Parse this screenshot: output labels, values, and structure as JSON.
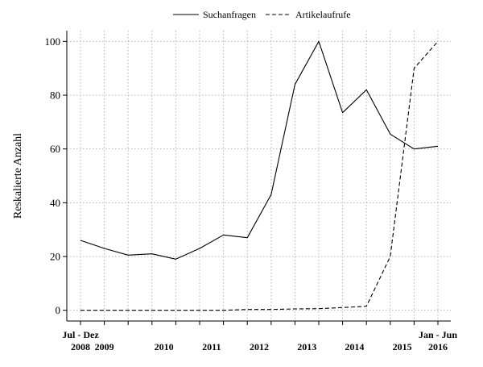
{
  "chart_data": {
    "type": "line",
    "ylabel": "Reskalierte Anzahl",
    "xlabel": "",
    "ylim": [
      -4,
      104
    ],
    "yticks": [
      0,
      20,
      40,
      60,
      80,
      100
    ],
    "grid": true,
    "legend_position": "top",
    "x_tick_labels": [
      {
        "half": 0,
        "lines": [
          "Jul - Dez",
          "2008"
        ]
      },
      {
        "half": 1,
        "lines": [
          "",
          "2009"
        ]
      },
      {
        "half": 3.5,
        "lines": [
          "",
          "2010"
        ]
      },
      {
        "half": 5.5,
        "lines": [
          "",
          "2011"
        ]
      },
      {
        "half": 7.5,
        "lines": [
          "",
          "2012"
        ]
      },
      {
        "half": 9.5,
        "lines": [
          "",
          "2013"
        ]
      },
      {
        "half": 11.5,
        "lines": [
          "",
          "2014"
        ]
      },
      {
        "half": 13.5,
        "lines": [
          "",
          "2015"
        ]
      },
      {
        "half": 15,
        "lines": [
          "Jan - Jun",
          "2016"
        ]
      }
    ],
    "x": [
      0,
      1,
      2,
      3,
      4,
      5,
      6,
      7,
      8,
      9,
      10,
      11,
      12,
      13,
      14,
      15
    ],
    "series": [
      {
        "name": "Suchanfragen",
        "dash": "solid",
        "values": [
          26,
          23,
          20.5,
          21,
          19,
          23,
          28,
          27,
          43,
          84,
          100,
          73.5,
          82,
          65.5,
          60,
          61
        ]
      },
      {
        "name": "Artikelaufrufe",
        "dash": "dashed",
        "values": [
          0,
          0,
          0,
          0,
          0,
          0,
          0,
          0.3,
          0.3,
          0.5,
          0.6,
          1,
          1.5,
          20,
          90,
          100
        ]
      }
    ]
  }
}
